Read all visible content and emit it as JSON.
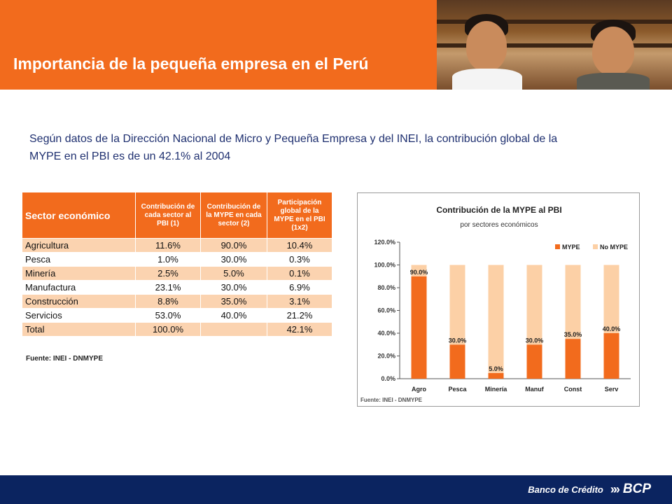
{
  "header": {
    "title": "Importancia de la pequeña empresa en el Perú",
    "accent_color": "#f26b1d"
  },
  "intro": {
    "text": "Según datos de la Dirección Nacional de Micro y Pequeña Empresa y del INEI, la contribución global de la MYPE en el PBI es de un 42.1% al 2004"
  },
  "table": {
    "headers": [
      "Sector económico",
      "Contribución de cada sector al PBI (1)",
      "Contribución de la MYPE en cada sector (2)",
      "Participación global de la MYPE en el PBI (1x2)"
    ],
    "rows": [
      {
        "sector": "Agricultura",
        "c1": "11.6%",
        "c2": "90.0%",
        "c3": "10.4%"
      },
      {
        "sector": "Pesca",
        "c1": "1.0%",
        "c2": "30.0%",
        "c3": "0.3%"
      },
      {
        "sector": "Minería",
        "c1": "2.5%",
        "c2": "5.0%",
        "c3": "0.1%"
      },
      {
        "sector": "Manufactura",
        "c1": "23.1%",
        "c2": "30.0%",
        "c3": "6.9%"
      },
      {
        "sector": "Construcción",
        "c1": "8.8%",
        "c2": "35.0%",
        "c3": "3.1%"
      },
      {
        "sector": "Servicios",
        "c1": "53.0%",
        "c2": "40.0%",
        "c3": "21.2%"
      }
    ],
    "total": {
      "sector": "Total",
      "c1": "100.0%",
      "c2": "",
      "c3": "42.1%"
    },
    "source": "Fuente: INEI - DNMYPE"
  },
  "chart_data": {
    "type": "bar",
    "stacked": true,
    "title": "Contribución de la MYPE al PBI",
    "subtitle": "por sectores económicos",
    "categories": [
      "Agro",
      "Pesca",
      "Minería",
      "Manuf",
      "Const",
      "Serv"
    ],
    "series": [
      {
        "name": "MYPE",
        "values": [
          90.0,
          30.0,
          5.0,
          30.0,
          35.0,
          40.0
        ],
        "color": "#f26b1d"
      },
      {
        "name": "No MYPE",
        "values": [
          10.0,
          70.0,
          95.0,
          70.0,
          65.0,
          60.0
        ],
        "color": "#fcd0a6"
      }
    ],
    "data_labels": [
      "90.0%",
      "30.0%",
      "5.0%",
      "30.0%",
      "35.0%",
      "40.0%"
    ],
    "y_ticks": [
      "0.0%",
      "20.0%",
      "40.0%",
      "60.0%",
      "80.0%",
      "100.0%",
      "120.0%"
    ],
    "ylim": [
      0,
      120
    ],
    "legend_position": "top-right",
    "grid": false,
    "source": "Fuente: INEI - DNMYPE"
  },
  "footer": {
    "bank_name": "Banco de Crédito",
    "brand": "BCP",
    "arrows": "»»",
    "color": "#0b2460"
  }
}
